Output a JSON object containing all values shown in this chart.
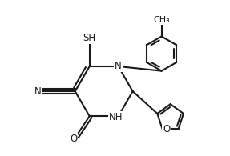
{
  "bg_color": "#ffffff",
  "line_color": "#1a1a1a",
  "line_width": 1.5,
  "font_size": 8.5,
  "figsize": [
    2.87,
    1.95
  ],
  "dpi": 100,
  "xlim": [
    0,
    10
  ],
  "ylim": [
    0,
    7
  ]
}
